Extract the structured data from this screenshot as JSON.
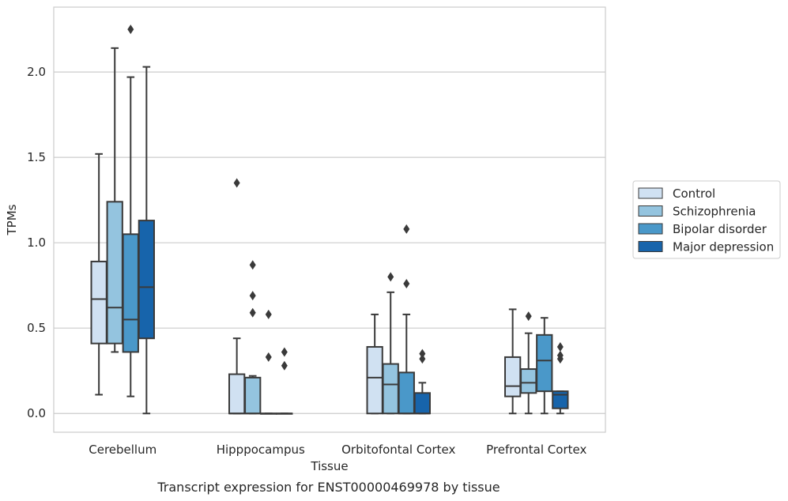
{
  "chart_data": {
    "type": "box",
    "title": "",
    "caption": "Transcript expression for ENST00000469978 by tissue",
    "xlabel": "Tissue",
    "ylabel": "TPMs",
    "ylim": [
      -0.11,
      2.38
    ],
    "yticks": [
      0.0,
      0.5,
      1.0,
      1.5,
      2.0
    ],
    "ytick_labels": [
      "0.0",
      "0.5",
      "1.0",
      "1.5",
      "2.0"
    ],
    "grid": "horizontal",
    "legend_position": "right",
    "categories": [
      "Cerebellum",
      "Hipppocampus",
      "Orbitofontal Cortex",
      "Prefrontal Cortex"
    ],
    "series": [
      {
        "name": "Control",
        "color": "#d0e1f2",
        "boxes": [
          {
            "whislo": 0.11,
            "q1": 0.41,
            "med": 0.67,
            "q3": 0.89,
            "whishi": 1.52,
            "fliers": []
          },
          {
            "whislo": 0.0,
            "q1": 0.0,
            "med": 0.0,
            "q3": 0.23,
            "whishi": 0.44,
            "fliers": [
              1.35
            ]
          },
          {
            "whislo": 0.0,
            "q1": 0.0,
            "med": 0.21,
            "q3": 0.39,
            "whishi": 0.58,
            "fliers": []
          },
          {
            "whislo": 0.0,
            "q1": 0.1,
            "med": 0.16,
            "q3": 0.33,
            "whishi": 0.61,
            "fliers": []
          }
        ]
      },
      {
        "name": "Schizophrenia",
        "color": "#94c4df",
        "boxes": [
          {
            "whislo": 0.36,
            "q1": 0.41,
            "med": 0.62,
            "q3": 1.24,
            "whishi": 2.14,
            "fliers": []
          },
          {
            "whislo": 0.0,
            "q1": 0.0,
            "med": 0.0,
            "q3": 0.21,
            "whishi": 0.22,
            "fliers": [
              0.59,
              0.69,
              0.87
            ]
          },
          {
            "whislo": 0.0,
            "q1": 0.0,
            "med": 0.17,
            "q3": 0.29,
            "whishi": 0.71,
            "fliers": [
              0.8
            ]
          },
          {
            "whislo": 0.0,
            "q1": 0.12,
            "med": 0.18,
            "q3": 0.26,
            "whishi": 0.47,
            "fliers": [
              0.57
            ]
          }
        ]
      },
      {
        "name": "Bipolar disorder",
        "color": "#4a98c9",
        "boxes": [
          {
            "whislo": 0.1,
            "q1": 0.36,
            "med": 0.55,
            "q3": 1.05,
            "whishi": 1.97,
            "fliers": [
              2.25
            ]
          },
          {
            "whislo": 0.0,
            "q1": 0.0,
            "med": 0.0,
            "q3": 0.0,
            "whishi": 0.0,
            "fliers": [
              0.33,
              0.58
            ]
          },
          {
            "whislo": 0.0,
            "q1": 0.0,
            "med": 0.0,
            "q3": 0.24,
            "whishi": 0.58,
            "fliers": [
              0.76,
              1.08
            ]
          },
          {
            "whislo": 0.0,
            "q1": 0.13,
            "med": 0.31,
            "q3": 0.46,
            "whishi": 0.56,
            "fliers": []
          }
        ]
      },
      {
        "name": "Major depression",
        "color": "#1764ab",
        "boxes": [
          {
            "whislo": 0.0,
            "q1": 0.44,
            "med": 0.74,
            "q3": 1.13,
            "whishi": 2.03,
            "fliers": []
          },
          {
            "whislo": 0.0,
            "q1": 0.0,
            "med": 0.0,
            "q3": 0.0,
            "whishi": 0.0,
            "fliers": [
              0.28,
              0.36
            ]
          },
          {
            "whislo": 0.0,
            "q1": 0.0,
            "med": 0.0,
            "q3": 0.12,
            "whishi": 0.18,
            "fliers": [
              0.32,
              0.35
            ]
          },
          {
            "whislo": 0.0,
            "q1": 0.03,
            "med": 0.11,
            "q3": 0.13,
            "whishi": 0.13,
            "fliers": [
              0.32,
              0.34,
              0.39
            ]
          }
        ]
      }
    ]
  }
}
